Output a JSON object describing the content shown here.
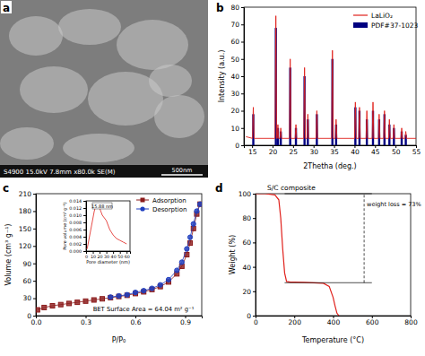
{
  "panel_labels": [
    "a",
    "b",
    "c",
    "d"
  ],
  "image": {
    "caption": "S4900 15.0kV 7.8mm x80.0k SE(M)",
    "scale_bar": "500nm"
  },
  "chart_data": [
    {
      "type": "line",
      "xlabel": "2Thetha (deg.)",
      "ylabel": "Intensity (a.u.)",
      "xlim": [
        13,
        55
      ],
      "xticks": [
        15,
        20,
        25,
        30,
        35,
        40,
        45,
        50,
        55
      ],
      "ylim": [
        0,
        80
      ],
      "yticks": [
        0,
        10,
        20,
        30,
        40,
        50,
        60,
        70,
        80
      ],
      "legend": "upper right",
      "series": [
        {
          "name": "LaLiO₂",
          "type": "line",
          "color": "#e0201b",
          "x": [
            13.5,
            15.1,
            15.3,
            15.5,
            20.6,
            20.8,
            21.0,
            21.15,
            21.3,
            21.45,
            21.8,
            22.0,
            22.2,
            24.1,
            24.3,
            24.5,
            25.5,
            25.7,
            25.9,
            27.6,
            27.8,
            28.0,
            28.4,
            28.6,
            28.8,
            30.6,
            30.8,
            31.0,
            34.4,
            34.6,
            34.8,
            35.3,
            35.5,
            35.7,
            40.0,
            40.2,
            40.4,
            41.0,
            41.2,
            41.4,
            42.8,
            43.0,
            43.2,
            44.3,
            44.5,
            44.7,
            45.8,
            46.0,
            46.2,
            47.1,
            47.3,
            47.5,
            48.3,
            48.5,
            48.7,
            49.4,
            49.6,
            49.8,
            51.3,
            51.5,
            51.7,
            52.3,
            52.5,
            52.7,
            55
          ],
          "values": [
            5,
            4,
            22,
            4,
            4,
            75,
            4,
            4,
            12,
            4,
            4,
            10,
            4,
            4,
            50,
            4,
            4,
            12,
            4,
            4,
            45,
            4,
            4,
            18,
            4,
            4,
            20,
            4,
            4,
            55,
            4,
            4,
            15,
            4,
            4,
            25,
            4,
            4,
            22,
            4,
            4,
            20,
            4,
            4,
            25,
            4,
            4,
            18,
            4,
            4,
            20,
            4,
            4,
            15,
            4,
            4,
            12,
            4,
            4,
            10,
            4,
            4,
            8,
            4,
            4
          ]
        },
        {
          "name": "PDF#37-1023",
          "type": "bar",
          "color": "#000080",
          "x": [
            15.3,
            20.8,
            21.3,
            22.0,
            24.3,
            25.7,
            27.8,
            28.6,
            30.8,
            34.6,
            35.5,
            40.2,
            41.2,
            43.0,
            44.5,
            46.0,
            47.3,
            48.5,
            49.6,
            51.5,
            52.5
          ],
          "values": [
            18,
            68,
            10,
            8,
            45,
            10,
            40,
            15,
            18,
            50,
            12,
            22,
            20,
            15,
            20,
            15,
            18,
            12,
            10,
            8,
            6
          ]
        }
      ]
    },
    {
      "type": "line",
      "xlabel": "P/P₀",
      "ylabel": "Volume (cm³ g⁻¹)",
      "xlim": [
        0,
        1.0
      ],
      "xticks": [
        {
          "value": 0,
          "label": "0.0"
        },
        0.3,
        0.6,
        0.9
      ],
      "ylim": [
        0,
        210
      ],
      "yticks": [
        0,
        30,
        60,
        90,
        120,
        150,
        180,
        210
      ],
      "legend": "upper right",
      "annotations": [
        {
          "text": "BET Surface Area = 64.04 m² g⁻¹"
        }
      ],
      "series": [
        {
          "name": "Adsorption",
          "color": "#8b1a1a",
          "marker": "square",
          "line_style": "solid",
          "x": [
            0.01,
            0.05,
            0.1,
            0.15,
            0.2,
            0.25,
            0.3,
            0.35,
            0.4,
            0.45,
            0.5,
            0.55,
            0.6,
            0.65,
            0.7,
            0.75,
            0.8,
            0.85,
            0.88,
            0.91,
            0.93,
            0.95,
            0.97,
            0.99
          ],
          "values": [
            10,
            14,
            17,
            19,
            21,
            23,
            25,
            27,
            29,
            31,
            33,
            35,
            38,
            41,
            45,
            50,
            58,
            72,
            85,
            105,
            125,
            150,
            175,
            192
          ]
        },
        {
          "name": "Desorption",
          "color": "#1f3fbf",
          "marker": "circle",
          "line_style": "solid",
          "x": [
            0.99,
            0.97,
            0.95,
            0.93,
            0.91,
            0.88,
            0.85,
            0.8,
            0.75,
            0.7,
            0.65,
            0.6,
            0.55,
            0.5,
            0.45
          ],
          "values": [
            192,
            180,
            158,
            135,
            115,
            92,
            78,
            62,
            53,
            47,
            43,
            40,
            36,
            34,
            32
          ]
        }
      ]
    },
    {
      "type": "line",
      "xlabel": "Pore diameter (nm)",
      "ylabel": "Pore volume (cm³ g⁻¹)",
      "xlim": [
        0,
        65
      ],
      "xticks": [
        0,
        10,
        20,
        30,
        40,
        50,
        60
      ],
      "ylim": [
        0,
        0.014
      ],
      "yticks": [
        {
          "value": 0,
          "label": "0.000"
        },
        {
          "value": 0.002,
          "label": "0.002"
        },
        {
          "value": 0.004,
          "label": "0.004"
        },
        {
          "value": 0.006,
          "label": "0.006"
        },
        {
          "value": 0.008,
          "label": "0.008"
        },
        {
          "value": 0.01,
          "label": "0.010"
        },
        {
          "value": 0.012,
          "label": "0.012"
        },
        {
          "value": 0.014,
          "label": "0.014"
        }
      ],
      "annotations": [
        {
          "text": "15.88 nm"
        }
      ],
      "series": [
        {
          "color": "#e0201b",
          "x": [
            1,
            2,
            3,
            4,
            5,
            6,
            8,
            10,
            12,
            14,
            16,
            18,
            20,
            22,
            24,
            26,
            28,
            30,
            32,
            35,
            40,
            45,
            50,
            55,
            60
          ],
          "values": [
            0.0005,
            0.001,
            0.002,
            0.003,
            0.004,
            0.005,
            0.007,
            0.009,
            0.011,
            0.0125,
            0.0132,
            0.0125,
            0.012,
            0.011,
            0.01,
            0.0095,
            0.009,
            0.0085,
            0.0075,
            0.006,
            0.0045,
            0.0035,
            0.003,
            0.0025,
            0.002
          ]
        }
      ]
    },
    {
      "type": "line",
      "title": "S/C composite",
      "xlabel": "Temperature (°C)",
      "ylabel": "Weight (%)",
      "xlim": [
        0,
        800
      ],
      "xticks": [
        0,
        200,
        400,
        600,
        800
      ],
      "ylim": [
        0,
        100
      ],
      "yticks": [
        0,
        20,
        40,
        60,
        80,
        100
      ],
      "annotations": [
        {
          "text": "weight loss = 73%"
        }
      ],
      "hlines": [
        {
          "y": 100,
          "x": [
            150,
            600
          ]
        },
        {
          "y": 27,
          "x": [
            150,
            600
          ]
        }
      ],
      "vline": {
        "x": 560,
        "y": [
          27,
          100
        ]
      },
      "series": [
        {
          "color": "#e0201b",
          "x": [
            0,
            50,
            100,
            120,
            130,
            140,
            150,
            160,
            180,
            200,
            250,
            300,
            350,
            380,
            400,
            410,
            420,
            430
          ],
          "values": [
            100,
            100,
            99,
            95,
            80,
            55,
            35,
            28,
            27.5,
            27.5,
            27.3,
            27,
            26.5,
            24,
            15,
            8,
            2,
            0
          ]
        }
      ]
    }
  ]
}
